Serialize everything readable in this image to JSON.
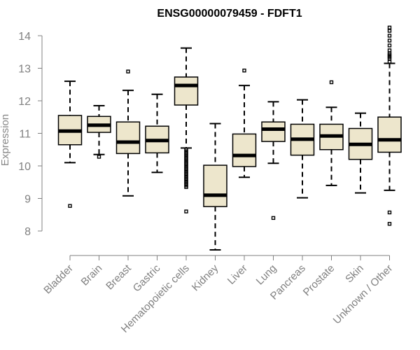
{
  "chart_data": {
    "type": "boxplot",
    "title": "ENSG00000079459 - FDFT1",
    "xlabel": "",
    "ylabel": "Expression",
    "ylim": [
      7.3,
      14.3
    ],
    "yticks": [
      8,
      9,
      10,
      11,
      12,
      13,
      14
    ],
    "colors": {
      "box_fill": "#ede6cc",
      "box_stroke": "#000000",
      "axis": "#808080"
    },
    "categories": [
      "Bladder",
      "Brain",
      "Breast",
      "Gastric",
      "Hematopoietic cells",
      "Kidney",
      "Liver",
      "Lung",
      "Pancreas",
      "Prostate",
      "Skin",
      "Unknown / Other"
    ],
    "boxes": [
      {
        "name": "Bladder",
        "whisker_low": 10.1,
        "q1": 10.65,
        "median": 11.07,
        "q3": 11.55,
        "whisker_high": 12.6,
        "outliers": [
          8.77
        ]
      },
      {
        "name": "Brain",
        "whisker_low": 10.35,
        "q1": 11.03,
        "median": 11.25,
        "q3": 11.52,
        "whisker_high": 11.85,
        "outliers": [
          10.28
        ]
      },
      {
        "name": "Breast",
        "whisker_low": 9.08,
        "q1": 10.38,
        "median": 10.73,
        "q3": 11.35,
        "whisker_high": 12.32,
        "outliers": [
          12.9
        ]
      },
      {
        "name": "Gastric",
        "whisker_low": 9.8,
        "q1": 10.4,
        "median": 10.78,
        "q3": 11.22,
        "whisker_high": 12.2,
        "outliers": []
      },
      {
        "name": "Hematopoietic cells",
        "whisker_low": 10.55,
        "q1": 11.87,
        "median": 12.47,
        "q3": 12.73,
        "whisker_high": 13.62,
        "outliers": [
          10.5,
          10.45,
          10.4,
          10.35,
          10.3,
          10.25,
          10.2,
          10.15,
          10.1,
          10.05,
          10.0,
          9.95,
          9.9,
          9.85,
          9.8,
          9.75,
          9.7,
          9.65,
          9.6,
          9.55,
          9.5,
          9.45,
          9.4,
          9.35,
          8.6
        ]
      },
      {
        "name": "Kidney",
        "whisker_low": 7.42,
        "q1": 8.75,
        "median": 9.1,
        "q3": 10.02,
        "whisker_high": 11.3,
        "outliers": []
      },
      {
        "name": "Liver",
        "whisker_low": 9.65,
        "q1": 9.98,
        "median": 10.32,
        "q3": 10.98,
        "whisker_high": 12.47,
        "outliers": [
          12.93
        ]
      },
      {
        "name": "Lung",
        "whisker_low": 10.08,
        "q1": 10.75,
        "median": 11.13,
        "q3": 11.35,
        "whisker_high": 11.97,
        "outliers": [
          8.4
        ]
      },
      {
        "name": "Pancreas",
        "whisker_low": 9.02,
        "q1": 10.33,
        "median": 10.82,
        "q3": 11.28,
        "whisker_high": 12.03,
        "outliers": []
      },
      {
        "name": "Prostate",
        "whisker_low": 9.4,
        "q1": 10.5,
        "median": 10.92,
        "q3": 11.28,
        "whisker_high": 11.8,
        "outliers": [
          12.57
        ]
      },
      {
        "name": "Skin",
        "whisker_low": 9.17,
        "q1": 10.2,
        "median": 10.66,
        "q3": 11.15,
        "whisker_high": 11.62,
        "outliers": []
      },
      {
        "name": "Unknown / Other",
        "whisker_low": 9.25,
        "q1": 10.42,
        "median": 10.8,
        "q3": 11.5,
        "whisker_high": 13.15,
        "outliers": [
          14.25,
          14.15,
          14.0,
          13.85,
          13.7,
          13.55,
          13.45,
          13.4,
          13.35,
          13.3,
          13.2,
          8.57,
          8.22
        ]
      }
    ]
  }
}
